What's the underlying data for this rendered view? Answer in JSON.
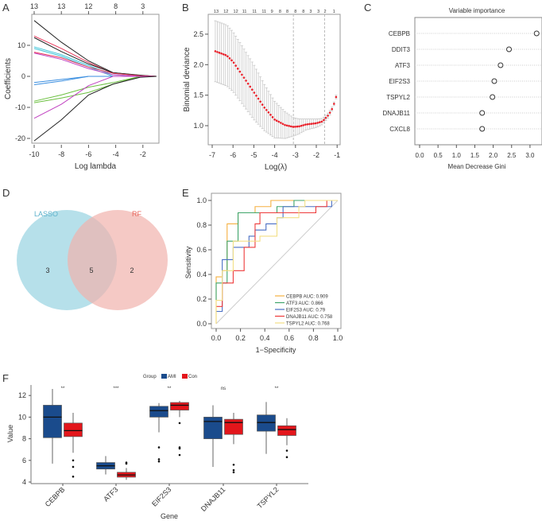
{
  "panel_labels": [
    "A",
    "B",
    "C",
    "D",
    "E",
    "F"
  ],
  "chart_data": [
    {
      "type": "line",
      "xlabel": "Log lambda",
      "ylabel": "Coefficients",
      "xlim": [
        -10,
        -1
      ],
      "ylim": [
        -21,
        18
      ],
      "x_ticks": [
        -10,
        -8,
        -6,
        -4,
        -2
      ],
      "y_ticks": [
        -20,
        -10,
        0,
        10
      ],
      "top_axis_labels": [
        {
          "x": -10,
          "label": "13"
        },
        {
          "x": -8,
          "label": "13"
        },
        {
          "x": -6,
          "label": "12"
        },
        {
          "x": -4,
          "label": "8"
        },
        {
          "x": -2,
          "label": "3"
        }
      ],
      "x": [
        -10,
        -8,
        -6,
        -4.2,
        -2.2,
        -1
      ],
      "series": [
        {
          "color": "#222222",
          "values": [
            18,
            11,
            5,
            1.2,
            0.4,
            0
          ]
        },
        {
          "color": "#e8365a",
          "values": [
            13,
            9,
            4.5,
            1,
            0.3,
            0
          ]
        },
        {
          "color": "#222222",
          "values": [
            12.5,
            8,
            4,
            1.2,
            0.3,
            0
          ]
        },
        {
          "color": "#3cc4d8",
          "values": [
            9.5,
            7,
            3.5,
            0.5,
            0,
            0
          ]
        },
        {
          "color": "#3cc4d8",
          "values": [
            9,
            6.5,
            3,
            0,
            0,
            0
          ]
        },
        {
          "color": "#e8365a",
          "values": [
            7.8,
            6,
            3,
            1,
            0.2,
            0
          ]
        },
        {
          "color": "#c040c0",
          "values": [
            7.5,
            5.5,
            2.5,
            0.5,
            0,
            0
          ]
        },
        {
          "color": "#3a8ee0",
          "values": [
            -2,
            -1,
            0,
            0,
            0,
            0
          ]
        },
        {
          "color": "#3a8ee0",
          "values": [
            -2.7,
            -1.5,
            0,
            0,
            0,
            0
          ]
        },
        {
          "color": "#6cc040",
          "values": [
            -8,
            -6,
            -3.5,
            -2,
            0,
            0
          ]
        },
        {
          "color": "#6cc040",
          "values": [
            -8.5,
            -7,
            -5.2,
            -2.5,
            0,
            0
          ]
        },
        {
          "color": "#c040c0",
          "values": [
            -13.5,
            -9,
            -3,
            0,
            0,
            0
          ]
        },
        {
          "color": "#222222",
          "values": [
            -20.8,
            -14,
            -6,
            -2.5,
            -0.3,
            0
          ]
        }
      ]
    },
    {
      "type": "scatter",
      "xlabel": "Log(λ)",
      "ylabel": "Binomial deviance",
      "xlim": [
        -7.2,
        -0.85
      ],
      "ylim": [
        0.7,
        2.8
      ],
      "x_ticks": [
        -7,
        -6,
        -5,
        -4,
        -3,
        -2,
        -1
      ],
      "y_ticks": [
        1.0,
        1.5,
        2.0,
        2.5
      ],
      "top_axis_labels": [
        {
          "x": -6.81,
          "label": "13"
        },
        {
          "x": -6.34,
          "label": "12"
        },
        {
          "x": -5.87,
          "label": "12"
        },
        {
          "x": -5.45,
          "label": "11"
        },
        {
          "x": -4.97,
          "label": "11"
        },
        {
          "x": -4.51,
          "label": "11"
        },
        {
          "x": -4.13,
          "label": "9"
        },
        {
          "x": -3.74,
          "label": "8"
        },
        {
          "x": -3.39,
          "label": "8"
        },
        {
          "x": -3.0,
          "label": "8"
        },
        {
          "x": -2.62,
          "label": "8"
        },
        {
          "x": -2.27,
          "label": "3"
        },
        {
          "x": -1.9,
          "label": "3"
        },
        {
          "x": -1.58,
          "label": "2"
        },
        {
          "x": -1.15,
          "label": "1"
        }
      ],
      "reference_lines": [
        -3.1,
        -1.6
      ],
      "curve": {
        "x": [
          -6.85,
          -6.3,
          -6.0,
          -5.5,
          -5.0,
          -4.5,
          -4.0,
          -3.5,
          -3.1,
          -2.8,
          -2.5,
          -2.0,
          -1.7,
          -1.4,
          -1.2,
          -1.05
        ],
        "mean": [
          2.22,
          2.15,
          2.05,
          1.8,
          1.55,
          1.3,
          1.1,
          1.01,
          0.98,
          0.99,
          1.02,
          1.04,
          1.07,
          1.18,
          1.3,
          1.47
        ],
        "error": [
          0.5,
          0.5,
          0.49,
          0.47,
          0.45,
          0.38,
          0.3,
          0.22,
          0.15,
          0.12,
          0.09,
          0.07,
          0.05,
          0.04,
          0.03,
          0.03
        ]
      },
      "point_color": "#e8202a"
    },
    {
      "type": "scatter",
      "title": "Variable importance",
      "xlabel": "Mean Decrease Gini",
      "xlim": [
        -0.1,
        3.3
      ],
      "x_ticks": [
        0.0,
        0.5,
        1.0,
        1.5,
        2.0,
        2.5,
        3.0
      ],
      "x_tick_labels": [
        "0.0",
        "0.5",
        "1.0",
        "1.5",
        "2.0",
        "2.5",
        "3.0"
      ],
      "categories": [
        "CEBPB",
        "DDIT3",
        "ATF3",
        "EIF2S3",
        "TSPYL2",
        "DNAJB11",
        "CXCL8"
      ],
      "values": [
        3.18,
        2.43,
        2.2,
        2.03,
        1.98,
        1.7,
        1.7
      ]
    },
    {
      "type": "venn",
      "sets": [
        {
          "name": "LASSO",
          "only": 3,
          "color": "#a9dbe6",
          "label_color": "#5fb3cc"
        },
        {
          "name": "RF",
          "only": 2,
          "color": "#f1b2ad",
          "label_color": "#e8645a"
        }
      ],
      "intersection": 5
    },
    {
      "type": "line",
      "xlabel": "1−Specificity",
      "ylabel": "Sensitivity",
      "xlim": [
        0,
        1
      ],
      "ylim": [
        0,
        1
      ],
      "x_ticks": [
        0.0,
        0.2,
        0.4,
        0.6,
        0.8,
        1.0
      ],
      "y_ticks": [
        0.0,
        0.2,
        0.4,
        0.6,
        0.8,
        1.0
      ],
      "tick_labels": [
        "0.0",
        "0.2",
        "0.4",
        "0.6",
        "0.8",
        "1.0"
      ],
      "legend_position": "bottom-right",
      "series": [
        {
          "name": "CEBPB AUC: 0.909",
          "color": "#f5b041",
          "points": [
            [
              0,
              0
            ],
            [
              0,
              0.38
            ],
            [
              0.05,
              0.38
            ],
            [
              0.05,
              0.43
            ],
            [
              0.09,
              0.43
            ],
            [
              0.09,
              0.81
            ],
            [
              0.18,
              0.81
            ],
            [
              0.18,
              0.9
            ],
            [
              0.32,
              0.9
            ],
            [
              0.32,
              0.95
            ],
            [
              0.45,
              0.95
            ],
            [
              0.45,
              1
            ],
            [
              1,
              1
            ]
          ]
        },
        {
          "name": "ATF3 AUC: 0.866",
          "color": "#3fa56b",
          "points": [
            [
              0,
              0.19
            ],
            [
              0,
              0.33
            ],
            [
              0.09,
              0.33
            ],
            [
              0.09,
              0.67
            ],
            [
              0.18,
              0.67
            ],
            [
              0.18,
              0.9
            ],
            [
              0.5,
              0.9
            ],
            [
              0.5,
              0.95
            ],
            [
              0.64,
              0.95
            ],
            [
              0.64,
              1
            ],
            [
              1,
              1
            ]
          ]
        },
        {
          "name": "EIF2S3 AUC: 0.79",
          "color": "#4a6fc4",
          "points": [
            [
              0,
              0.1
            ],
            [
              0.05,
              0.1
            ],
            [
              0.05,
              0.52
            ],
            [
              0.14,
              0.52
            ],
            [
              0.14,
              0.62
            ],
            [
              0.27,
              0.62
            ],
            [
              0.27,
              0.71
            ],
            [
              0.32,
              0.71
            ],
            [
              0.32,
              0.76
            ],
            [
              0.41,
              0.76
            ],
            [
              0.41,
              0.81
            ],
            [
              0.5,
              0.81
            ],
            [
              0.5,
              0.86
            ],
            [
              0.55,
              0.86
            ],
            [
              0.55,
              0.95
            ],
            [
              0.95,
              0.95
            ],
            [
              0.95,
              1
            ],
            [
              1,
              1
            ]
          ]
        },
        {
          "name": "DNAJB11 AUC: 0.758",
          "color": "#ee3b3b",
          "points": [
            [
              0,
              0.14
            ],
            [
              0.05,
              0.14
            ],
            [
              0.05,
              0.33
            ],
            [
              0.14,
              0.33
            ],
            [
              0.14,
              0.43
            ],
            [
              0.23,
              0.43
            ],
            [
              0.23,
              0.62
            ],
            [
              0.32,
              0.62
            ],
            [
              0.32,
              0.81
            ],
            [
              0.36,
              0.81
            ],
            [
              0.36,
              0.9
            ],
            [
              0.82,
              0.9
            ],
            [
              0.82,
              0.95
            ],
            [
              0.91,
              0.95
            ],
            [
              0.91,
              1
            ],
            [
              1,
              1
            ]
          ]
        },
        {
          "name": "TSPYL2 AUC: 0.768",
          "color": "#f3df85",
          "points": [
            [
              0,
              0
            ],
            [
              0,
              0.19
            ],
            [
              0.05,
              0.19
            ],
            [
              0.05,
              0.43
            ],
            [
              0.14,
              0.43
            ],
            [
              0.14,
              0.67
            ],
            [
              0.36,
              0.67
            ],
            [
              0.36,
              0.71
            ],
            [
              0.5,
              0.71
            ],
            [
              0.5,
              0.86
            ],
            [
              0.68,
              0.86
            ],
            [
              0.68,
              0.95
            ],
            [
              0.73,
              0.95
            ],
            [
              0.73,
              1
            ],
            [
              1,
              1
            ]
          ]
        }
      ]
    },
    {
      "type": "box",
      "xlabel": "Gene",
      "ylabel": "Value",
      "ylim": [
        4,
        13
      ],
      "y_ticks": [
        4,
        6,
        8,
        10,
        12
      ],
      "legend_title": "Group",
      "legend_position": "top",
      "groups": [
        {
          "name": "AMI",
          "color": "#1a4b8c"
        },
        {
          "name": "Con",
          "color": "#e3161b"
        }
      ],
      "categories": [
        "CEBPB",
        "ATF3",
        "EIF2S3",
        "DNAJB11",
        "TSPYL2"
      ],
      "significance": [
        "**",
        "***",
        "**",
        "ns",
        "**"
      ],
      "boxes": [
        [
          {
            "min": 5.7,
            "q1": 8.1,
            "median": 10.0,
            "q3": 11.1,
            "max": 12.6,
            "outliers": []
          },
          {
            "min": 6.7,
            "q1": 8.2,
            "median": 8.75,
            "q3": 9.45,
            "max": 10.4,
            "outliers": [
              6.0,
              5.4,
              4.5
            ]
          }
        ],
        [
          {
            "min": 4.7,
            "q1": 5.2,
            "median": 5.5,
            "q3": 5.8,
            "max": 6.4,
            "outliers": []
          },
          {
            "min": 4.2,
            "q1": 4.45,
            "median": 4.65,
            "q3": 4.9,
            "max": 5.3,
            "outliers": [
              5.7,
              5.8
            ]
          }
        ],
        [
          {
            "min": 8.6,
            "q1": 10.0,
            "median": 10.6,
            "q3": 11.0,
            "max": 11.3,
            "outliers": [
              7.2,
              6.1,
              5.9
            ]
          },
          {
            "min": 10.0,
            "q1": 10.65,
            "median": 11.1,
            "q3": 11.35,
            "max": 11.5,
            "outliers": [
              9.45,
              7.2,
              7.1,
              6.5
            ]
          }
        ],
        [
          {
            "min": 5.4,
            "q1": 8.0,
            "median": 9.6,
            "q3": 10.0,
            "max": 11.1,
            "outliers": []
          },
          {
            "min": 7.5,
            "q1": 8.4,
            "median": 9.5,
            "q3": 9.8,
            "max": 10.4,
            "outliers": [
              5.6,
              5.1,
              4.9
            ]
          }
        ],
        [
          {
            "min": 6.6,
            "q1": 8.7,
            "median": 9.5,
            "q3": 10.2,
            "max": 11.4,
            "outliers": []
          },
          {
            "min": 7.4,
            "q1": 8.3,
            "median": 8.85,
            "q3": 9.2,
            "max": 9.9,
            "outliers": [
              6.9,
              6.3
            ]
          }
        ]
      ]
    }
  ]
}
